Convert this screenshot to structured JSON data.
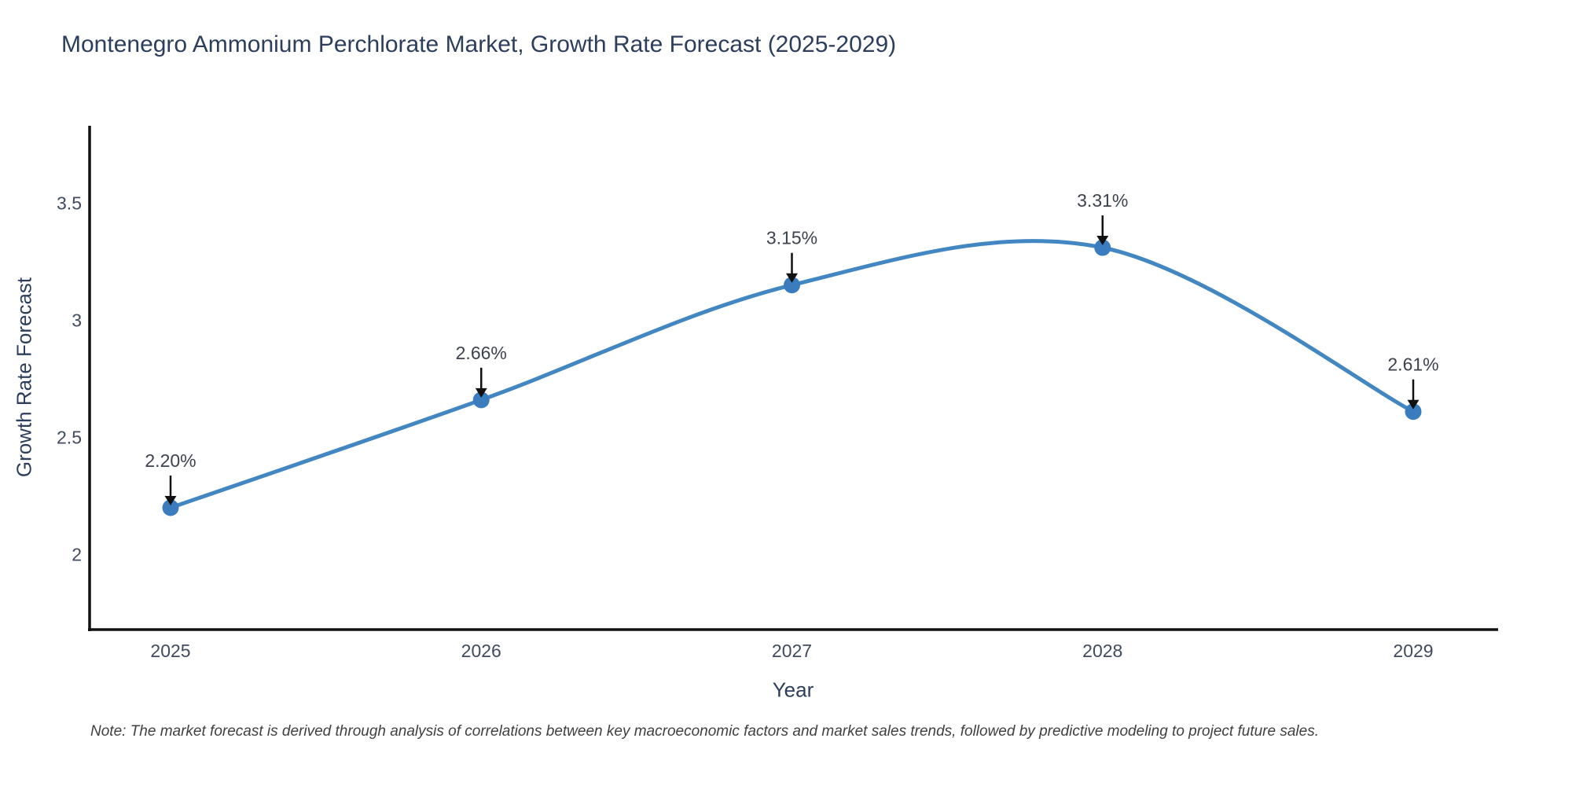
{
  "page": {
    "background": "#ffffff"
  },
  "chart_data": {
    "type": "line",
    "title": "Montenegro Ammonium Perchlorate Market, Growth Rate Forecast (2025-2029)",
    "xlabel": "Year",
    "ylabel": "Growth Rate Forecast",
    "categories": [
      "2025",
      "2026",
      "2027",
      "2028",
      "2029"
    ],
    "values": [
      2.2,
      2.66,
      3.15,
      3.31,
      2.61
    ],
    "data_labels": [
      "2.20%",
      "2.66%",
      "3.15%",
      "3.31%",
      "2.61%"
    ],
    "yticks": [
      2,
      2.5,
      3,
      3.5
    ],
    "ytick_labels": [
      "2",
      "2.5",
      "3",
      "3.5"
    ],
    "ylim": [
      1.68,
      3.83
    ],
    "line_shape": "spline",
    "grid": false,
    "legend": "none",
    "colors": {
      "line": "#4287c2",
      "marker": "#3a7cbe",
      "axis": "#111111",
      "tick_text": "#3f4b5e",
      "annotation_text": "#3c424e",
      "arrow": "#111111",
      "title_text": "#2b3f5c"
    },
    "note": "Note: The market forecast is derived through analysis of correlations between key macroeconomic factors and market sales trends, followed by predictive modeling to project future sales."
  }
}
